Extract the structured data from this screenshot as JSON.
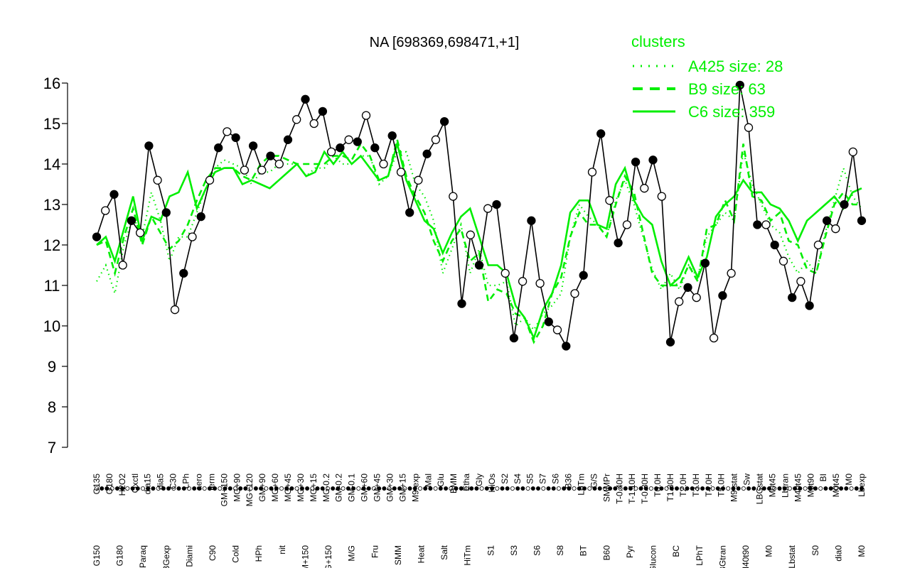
{
  "chart_data": {
    "type": "line",
    "title": "NA [698369,698471,+1]",
    "xlabel": "",
    "ylabel": "",
    "ylim": [
      7,
      16
    ],
    "yticks": [
      7,
      8,
      9,
      10,
      11,
      12,
      13,
      14,
      15,
      16
    ],
    "grid": false,
    "legend": {
      "title": "clusters",
      "placement": "top-right",
      "entries": [
        {
          "label": "A425 size: 28",
          "style": "dotted"
        },
        {
          "label": "B9 size: 63",
          "style": "dashed"
        },
        {
          "label": "C6 size: 359",
          "style": "solid"
        }
      ]
    },
    "colors": {
      "series": "#000000",
      "clusters": "#00ee00",
      "legend_text": "#00ee00"
    },
    "x_tick_labels_upper": [
      "G135",
      "G180",
      "H2O2",
      "Oxctl",
      "dia15",
      "dia5",
      "C30",
      "LPh",
      "aero",
      "ferm",
      "GM+150",
      "MG+90",
      "MG+120",
      "GM+90",
      "MG+60",
      "MG+45",
      "MG+30",
      "MG+15",
      "MG-0.2",
      "GM-0.2",
      "GM-0.1",
      "GM+60",
      "GM+45",
      "GM+30",
      "GM+15",
      "M9-exp",
      "Mal",
      "Glu",
      "BMM",
      "Etha",
      "Gly",
      "HiOs",
      "S2",
      "S4",
      "S5",
      "S7",
      "S6",
      "B36",
      "LoTm",
      "G/S",
      "SMMPr",
      "T-0.40H",
      "T-1.10H",
      "T-0.30H",
      "T0.0H",
      "T1.30H",
      "T2.0H",
      "T3.0H",
      "T4.0H",
      "T5.0H",
      "M9-stat",
      "Sw",
      "LBGstat",
      "M0t45",
      "Lbtran",
      "M40t45",
      "M0t90",
      "BI",
      "M0t45",
      "M0",
      "Lbexp"
    ],
    "x_tick_labels_lower": [
      "G150",
      "G180",
      "Paraq",
      "LBGexp",
      "Diami",
      "C90",
      "Cold",
      "HPh",
      "nit",
      "GM+150",
      "MG+150",
      "M/G",
      "Fru",
      "SMM",
      "Heat",
      "Salt",
      "HiTm",
      "S1",
      "S3",
      "S6",
      "S8",
      "BT",
      "B60",
      "Pyr",
      "Glucon",
      "BC",
      "LPhT",
      "LBGtran",
      "M40t90",
      "M0",
      "Lbstat",
      "S0",
      "dia0",
      "M0"
    ],
    "points": [
      {
        "x": "G150",
        "y": 12.2
      },
      {
        "x": "G135",
        "y": 12.85
      },
      {
        "x": "G180",
        "y": 13.25
      },
      {
        "x": "H2O2",
        "y": 11.5
      },
      {
        "x": "Paraq",
        "y": 12.6
      },
      {
        "x": "Oxctl",
        "y": 12.3
      },
      {
        "x": "LBGexp",
        "y": 14.45
      },
      {
        "x": "LBGexp",
        "y": 13.6
      },
      {
        "x": "dia15",
        "y": 12.8
      },
      {
        "x": "Diami",
        "y": 10.4
      },
      {
        "x": "dia5",
        "y": 11.3
      },
      {
        "x": "C90",
        "y": 12.2
      },
      {
        "x": "C30",
        "y": 12.7
      },
      {
        "x": "Cold",
        "y": 13.6
      },
      {
        "x": "LPh",
        "y": 14.4
      },
      {
        "x": "HPh",
        "y": 14.8
      },
      {
        "x": "aero",
        "y": 14.65
      },
      {
        "x": "nit",
        "y": 13.85
      },
      {
        "x": "ferm",
        "y": 14.45
      },
      {
        "x": "GM+150",
        "y": 13.85
      },
      {
        "x": "MG+150",
        "y": 14.2
      },
      {
        "x": "MG+120",
        "y": 14.0
      },
      {
        "x": "MG+90",
        "y": 14.6
      },
      {
        "x": "MG+60",
        "y": 15.1
      },
      {
        "x": "MG+45",
        "y": 15.6
      },
      {
        "x": "MG+30",
        "y": 15.0
      },
      {
        "x": "MG+15",
        "y": 15.3
      },
      {
        "x": "MG-0.2",
        "y": 14.3
      },
      {
        "x": "GM-0.2",
        "y": 14.4
      },
      {
        "x": "GM-0.1",
        "y": 14.6
      },
      {
        "x": "GM+60",
        "y": 14.55
      },
      {
        "x": "GM+45",
        "y": 15.2
      },
      {
        "x": "GM+30",
        "y": 14.4
      },
      {
        "x": "GM+15",
        "y": 14.0
      },
      {
        "x": "M9-exp",
        "y": 14.7
      },
      {
        "x": "M/G",
        "y": 13.8
      },
      {
        "x": "Mal",
        "y": 12.8
      },
      {
        "x": "Fru",
        "y": 13.6
      },
      {
        "x": "Glu",
        "y": 14.25
      },
      {
        "x": "SMM",
        "y": 14.6
      },
      {
        "x": "BMM",
        "y": 15.05
      },
      {
        "x": "Heat",
        "y": 13.2
      },
      {
        "x": "Etha",
        "y": 10.55
      },
      {
        "x": "Salt",
        "y": 12.25
      },
      {
        "x": "Gly",
        "y": 11.5
      },
      {
        "x": "HiTm",
        "y": 12.9
      },
      {
        "x": "HiOs",
        "y": 13.0
      },
      {
        "x": "S1",
        "y": 11.3
      },
      {
        "x": "S2",
        "y": 9.7
      },
      {
        "x": "S3",
        "y": 11.1
      },
      {
        "x": "S4",
        "y": 12.6
      },
      {
        "x": "S5",
        "y": 11.05
      },
      {
        "x": "S6",
        "y": 10.1
      },
      {
        "x": "S7",
        "y": 9.9
      },
      {
        "x": "S8",
        "y": 9.5
      },
      {
        "x": "S6",
        "y": 10.8
      },
      {
        "x": "BT",
        "y": 11.25
      },
      {
        "x": "B36",
        "y": 13.8
      },
      {
        "x": "B60",
        "y": 14.75
      },
      {
        "x": "LoTm",
        "y": 13.1
      },
      {
        "x": "Pyr",
        "y": 12.05
      },
      {
        "x": "G/S",
        "y": 12.5
      },
      {
        "x": "Glucon",
        "y": 14.05
      },
      {
        "x": "SMMPr",
        "y": 13.4
      },
      {
        "x": "T-0.40H",
        "y": 14.1
      },
      {
        "x": "T0.0H",
        "y": 13.2
      },
      {
        "x": "T1.30H",
        "y": 9.6
      },
      {
        "x": "T2.0H",
        "y": 10.6
      },
      {
        "x": "T3.0H",
        "y": 10.95
      },
      {
        "x": "T5.0H",
        "y": 10.7
      },
      {
        "x": "M9-stat",
        "y": 11.55
      },
      {
        "x": "BC",
        "y": 9.7
      },
      {
        "x": "Sw",
        "y": 10.75
      },
      {
        "x": "LPhT",
        "y": 11.3
      },
      {
        "x": "LBGstat",
        "y": 15.95
      },
      {
        "x": "LBGstat",
        "y": 14.9
      },
      {
        "x": "LBGtran",
        "y": 12.5
      },
      {
        "x": "M0t45",
        "y": 12.5
      },
      {
        "x": "M40t45",
        "y": 12.0
      },
      {
        "x": "Lbtran",
        "y": 11.6
      },
      {
        "x": "M40t90",
        "y": 10.7
      },
      {
        "x": "M0t90",
        "y": 11.1
      },
      {
        "x": "Lbstat",
        "y": 10.5
      },
      {
        "x": "BI",
        "y": 12.0
      },
      {
        "x": "S0",
        "y": 12.6
      },
      {
        "x": "M0t45",
        "y": 12.4
      },
      {
        "x": "dia0",
        "y": 13.0
      },
      {
        "x": "M0",
        "y": 14.3
      },
      {
        "x": "Lbexp",
        "y": 12.6
      }
    ],
    "clusters": [
      {
        "name": "A425 size: 28",
        "style": "dotted",
        "values": [
          11.1,
          11.5,
          10.8,
          12.0,
          12.7,
          12.2,
          13.3,
          12.6,
          11.6,
          12.2,
          12.2,
          12.8,
          13.4,
          13.9,
          14.1,
          14.0,
          13.9,
          13.5,
          13.8,
          13.8,
          14.0,
          14.0,
          14.0,
          13.7,
          13.9,
          13.9,
          14.2,
          14.0,
          14.0,
          14.2,
          14.2,
          13.5,
          13.7,
          14.3,
          14.3,
          13.5,
          13.2,
          12.6,
          11.3,
          11.9,
          12.5,
          11.3,
          11.9,
          11.0,
          11.0,
          11.1,
          10.0,
          10.2,
          9.9,
          10.3,
          10.5,
          10.8,
          12.2,
          13.0,
          12.7,
          12.5,
          12.2,
          13.1,
          13.6,
          13.0,
          12.2,
          11.4,
          10.9,
          11.3,
          10.9,
          11.5,
          11.2,
          12.2,
          12.5,
          12.8,
          12.6,
          14.3,
          13.5,
          13.0,
          12.5,
          12.3,
          11.7,
          11.3,
          11.6,
          11.3,
          12.3,
          13.1,
          13.9,
          13.2,
          12.9
        ]
      },
      {
        "name": "B9 size: 63",
        "style": "dashed",
        "values": [
          12.0,
          12.1,
          11.3,
          12.2,
          12.9,
          12.0,
          12.7,
          12.3,
          11.9,
          12.1,
          12.5,
          13.1,
          13.6,
          13.9,
          13.9,
          13.9,
          13.7,
          13.6,
          14.0,
          14.2,
          14.2,
          14.1,
          14.0,
          14.0,
          14.0,
          14.0,
          14.2,
          14.2,
          14.1,
          14.5,
          14.2,
          13.6,
          13.7,
          14.6,
          13.7,
          13.2,
          12.8,
          12.1,
          11.6,
          12.1,
          12.4,
          11.6,
          11.8,
          10.6,
          10.9,
          10.8,
          10.3,
          10.2,
          9.6,
          10.0,
          10.8,
          11.2,
          12.2,
          12.8,
          12.5,
          12.5,
          12.2,
          13.0,
          13.7,
          13.3,
          12.3,
          11.3,
          11.0,
          11.0,
          11.0,
          11.5,
          11.1,
          12.4,
          12.5,
          13.1,
          12.6,
          14.5,
          13.2,
          13.1,
          12.6,
          12.8,
          12.1,
          12.0,
          11.4,
          11.3,
          12.2,
          13.0,
          13.3,
          13.0,
          13.0
        ]
      },
      {
        "name": "C6 size: 359",
        "style": "solid",
        "values": [
          12.0,
          12.2,
          11.6,
          12.4,
          13.2,
          12.1,
          12.7,
          12.6,
          13.2,
          13.3,
          13.8,
          12.9,
          13.4,
          13.8,
          13.9,
          13.9,
          13.5,
          13.6,
          13.5,
          13.4,
          13.6,
          13.8,
          14.0,
          13.7,
          13.8,
          14.3,
          14.0,
          14.3,
          14.0,
          14.2,
          13.9,
          13.6,
          13.7,
          14.5,
          13.6,
          13.1,
          12.6,
          12.4,
          11.8,
          12.3,
          12.7,
          12.9,
          12.2,
          11.5,
          11.5,
          11.3,
          10.5,
          10.2,
          9.7,
          10.4,
          10.8,
          11.5,
          12.8,
          13.1,
          13.1,
          12.5,
          12.4,
          13.5,
          13.9,
          13.1,
          12.7,
          12.5,
          11.6,
          11.0,
          11.2,
          11.7,
          11.2,
          11.7,
          12.7,
          13.0,
          13.2,
          13.6,
          13.3,
          13.3,
          13.0,
          12.9,
          12.6,
          12.1,
          12.6,
          12.8,
          13.0,
          13.2,
          12.9,
          13.3,
          13.4
        ]
      }
    ]
  }
}
